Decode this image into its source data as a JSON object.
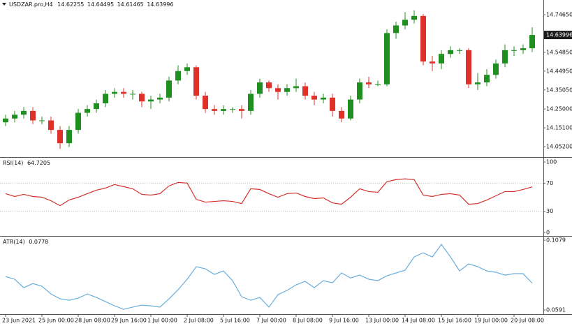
{
  "chart_data": [
    {
      "type": "candlestick",
      "title": "USDZAR.pro,H4",
      "header_values": [
        14.62255,
        14.64495,
        14.61465,
        14.63996
      ],
      "current_price": 14.63996,
      "up_color": "#1f8f1f",
      "down_color": "#e0302a",
      "categories": [
        "23 Jun 2021",
        null,
        null,
        null,
        "25 Jun 00:00",
        null,
        null,
        null,
        "28 Jun 08:00",
        null,
        null,
        null,
        "29 Jun 16:00",
        null,
        null,
        null,
        "1 Jul 00:00",
        null,
        null,
        null,
        "2 Jul 08:00",
        null,
        null,
        null,
        "5 Jul 16:00",
        null,
        null,
        null,
        "7 Jul 00:00",
        null,
        null,
        null,
        "8 Jul 08:00",
        null,
        null,
        null,
        "9 Jul 16:00",
        null,
        null,
        null,
        "13 Jul 00:00",
        null,
        null,
        null,
        "14 Jul 08:00",
        null,
        null,
        null,
        "15 Jul 16:00",
        null,
        null,
        null,
        "19 Jul 00:00",
        null,
        null,
        null,
        "20 Jul 08:00",
        null,
        null
      ],
      "open": [
        14.18,
        14.2,
        14.22,
        14.24,
        14.19,
        14.19,
        14.14,
        14.07,
        14.14,
        14.23,
        14.25,
        14.28,
        14.33,
        14.34,
        14.33,
        14.33,
        14.29,
        14.3,
        14.31,
        14.4,
        14.45,
        14.47,
        14.32,
        14.25,
        14.24,
        14.25,
        14.25,
        14.24,
        14.33,
        14.39,
        14.36,
        14.34,
        14.36,
        14.37,
        14.32,
        14.3,
        14.31,
        14.24,
        14.2,
        14.3,
        14.39,
        14.38,
        14.38,
        14.65,
        14.69,
        14.72,
        14.74,
        14.5,
        14.49,
        14.54,
        14.56,
        14.56,
        14.38,
        14.39,
        14.43,
        14.49,
        14.56,
        14.56,
        14.57
      ],
      "high": [
        14.22,
        14.24,
        14.26,
        14.26,
        14.21,
        14.21,
        14.16,
        14.16,
        14.25,
        14.27,
        14.3,
        14.35,
        14.36,
        14.36,
        14.35,
        14.34,
        14.32,
        14.33,
        14.42,
        14.48,
        14.49,
        14.48,
        14.34,
        14.27,
        14.27,
        14.26,
        14.27,
        14.35,
        14.41,
        14.4,
        14.38,
        14.38,
        14.41,
        14.39,
        14.34,
        14.33,
        14.33,
        14.26,
        14.32,
        14.41,
        14.42,
        14.4,
        14.67,
        14.71,
        14.76,
        14.77,
        14.75,
        14.53,
        14.56,
        14.58,
        14.57,
        14.57,
        14.44,
        14.46,
        14.51,
        14.59,
        14.58,
        14.59,
        14.68
      ],
      "low": [
        14.16,
        14.18,
        14.2,
        14.17,
        14.17,
        14.12,
        14.04,
        14.05,
        14.12,
        14.21,
        14.23,
        14.26,
        14.31,
        14.31,
        14.3,
        14.26,
        14.25,
        14.28,
        14.29,
        14.38,
        14.43,
        14.3,
        14.23,
        14.22,
        14.22,
        14.23,
        14.2,
        14.22,
        14.31,
        14.34,
        14.3,
        14.32,
        14.34,
        14.3,
        14.27,
        14.28,
        14.21,
        14.18,
        14.19,
        14.28,
        14.36,
        14.37,
        14.37,
        14.62,
        14.67,
        14.7,
        14.48,
        14.45,
        14.46,
        14.52,
        14.54,
        14.36,
        14.35,
        14.37,
        14.41,
        14.47,
        14.53,
        14.54,
        14.55
      ],
      "close": [
        14.2,
        14.22,
        14.24,
        14.19,
        14.19,
        14.14,
        14.07,
        14.14,
        14.23,
        14.25,
        14.28,
        14.33,
        14.34,
        14.33,
        14.33,
        14.29,
        14.3,
        14.31,
        14.4,
        14.45,
        14.47,
        14.32,
        14.25,
        14.24,
        14.25,
        14.25,
        14.24,
        14.33,
        14.39,
        14.36,
        14.34,
        14.36,
        14.37,
        14.32,
        14.3,
        14.31,
        14.24,
        14.2,
        14.3,
        14.39,
        14.38,
        14.38,
        14.65,
        14.69,
        14.72,
        14.74,
        14.5,
        14.49,
        14.54,
        14.56,
        14.56,
        14.38,
        14.39,
        14.43,
        14.49,
        14.56,
        14.56,
        14.57,
        14.64
      ],
      "ylim": [
        13.997,
        14.824
      ],
      "yticks": [
        {
          "value": 14.7465,
          "label": "14.74650"
        },
        {
          "value": 14.5485,
          "label": "14.54850"
        },
        {
          "value": 14.4495,
          "label": "14.44950"
        },
        {
          "value": 14.3505,
          "label": "14.35050"
        },
        {
          "value": 14.25,
          "label": "14.25000"
        },
        {
          "value": 14.151,
          "label": "14.15100"
        },
        {
          "value": 14.052,
          "label": "14.05200"
        }
      ]
    },
    {
      "type": "line",
      "title": "RSI(14)",
      "current_value": 64.7205,
      "color": "#d4302a",
      "values": [
        55,
        51,
        54,
        51,
        50,
        45,
        38,
        46,
        50,
        55,
        60,
        63,
        68,
        65,
        62,
        54,
        53,
        55,
        66,
        71,
        70,
        47,
        43,
        44,
        45,
        44,
        41,
        62,
        61,
        55,
        50,
        55,
        56,
        51,
        48,
        49,
        42,
        40,
        50,
        62,
        58,
        57,
        72,
        75,
        76,
        75,
        53,
        51,
        54,
        55,
        53,
        40,
        41,
        46,
        52,
        58,
        58,
        61,
        64.7205
      ],
      "ylim": [
        -5,
        105
      ],
      "yticks": [
        100,
        70,
        30,
        0
      ],
      "levels": [
        70,
        30
      ]
    },
    {
      "type": "line",
      "title": "ATR(14)",
      "current_value": 0.0778,
      "color": "#6aaedc",
      "values": [
        0.0825,
        0.0806,
        0.0747,
        0.0776,
        0.0757,
        0.0703,
        0.0669,
        0.0659,
        0.0674,
        0.0703,
        0.0679,
        0.065,
        0.062,
        0.0596,
        0.0611,
        0.0625,
        0.062,
        0.0611,
        0.0669,
        0.0733,
        0.0806,
        0.0894,
        0.0879,
        0.084,
        0.0864,
        0.0796,
        0.0684,
        0.0659,
        0.0679,
        0.0611,
        0.0698,
        0.0728,
        0.0767,
        0.0791,
        0.0747,
        0.0796,
        0.0781,
        0.085,
        0.0815,
        0.0835,
        0.0806,
        0.0796,
        0.083,
        0.085,
        0.0869,
        0.0962,
        0.0991,
        0.0962,
        0.105,
        0.0962,
        0.0864,
        0.0913,
        0.0894,
        0.0864,
        0.0855,
        0.0835,
        0.0845,
        0.0845,
        0.0778
      ],
      "ylim": [
        0.0562,
        0.1099
      ],
      "yticks": [
        0.1079,
        0.0591
      ]
    }
  ]
}
